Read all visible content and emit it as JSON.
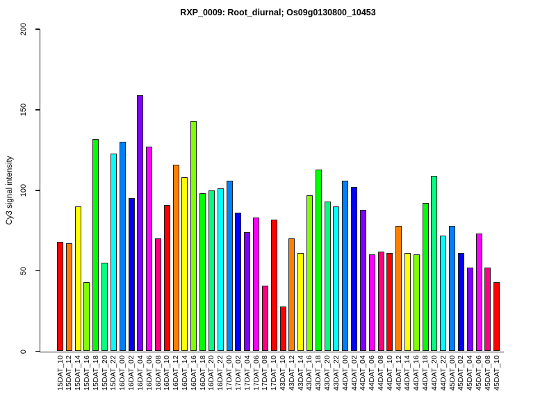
{
  "title": "RXP_0009: Root_diurnal; Os09g0130800_10453",
  "chart_data": {
    "type": "bar",
    "title": "RXP_0009: Root_diurnal; Os09g0130800_10453",
    "xlabel": "",
    "ylabel": "Cy3 signal intensity",
    "ylim": [
      0,
      200
    ],
    "yticks": [
      0,
      50,
      100,
      150,
      200
    ],
    "grid": false,
    "legend_position": "none",
    "background_color": "#ffffff",
    "axis_color": "#000000",
    "categories": [
      "15DAT_10",
      "15DAT_12",
      "15DAT_14",
      "15DAT_16",
      "15DAT_18",
      "15DAT_20",
      "15DAT_22",
      "16DAT_00",
      "16DAT_02",
      "16DAT_04",
      "16DAT_06",
      "16DAT_08",
      "16DAT_10",
      "16DAT_12",
      "16DAT_14",
      "16DAT_16",
      "16DAT_18",
      "16DAT_20",
      "16DAT_22",
      "17DAT_00",
      "17DAT_02",
      "17DAT_04",
      "17DAT_06",
      "17DAT_08",
      "17DAT_10",
      "43DAT_10",
      "43DAT_12",
      "43DAT_14",
      "43DAT_16",
      "43DAT_18",
      "43DAT_20",
      "43DAT_22",
      "44DAT_00",
      "44DAT_02",
      "44DAT_04",
      "44DAT_06",
      "44DAT_08",
      "44DAT_10",
      "44DAT_12",
      "44DAT_14",
      "44DAT_16",
      "44DAT_18",
      "44DAT_20",
      "44DAT_22",
      "45DAT_00",
      "45DAT_02",
      "45DAT_04",
      "45DAT_06",
      "45DAT_08",
      "45DAT_10"
    ],
    "values": [
      68,
      67,
      90,
      43,
      132,
      55,
      123,
      130,
      95,
      159,
      127,
      70,
      91,
      116,
      108,
      143,
      98,
      100,
      101,
      106,
      86,
      74,
      83,
      41,
      82,
      28,
      70,
      61,
      97,
      113,
      93,
      90,
      106,
      102,
      88,
      60,
      62,
      61,
      78,
      61,
      60,
      92,
      109,
      72,
      78,
      61,
      52,
      73,
      52,
      43
    ],
    "bar_colors": [
      "#FF0000",
      "#FF8000",
      "#FFFF00",
      "#80FF00",
      "#00FF00",
      "#00FF80",
      "#00FFFF",
      "#0080FF",
      "#0000FF",
      "#8000FF",
      "#FF00FF",
      "#FF0080",
      "#FF0000",
      "#FF8000",
      "#FFFF00",
      "#80FF00",
      "#00FF00",
      "#00FF80",
      "#00FFFF",
      "#0080FF",
      "#0000FF",
      "#8000FF",
      "#FF00FF",
      "#FF0080",
      "#FF0000",
      "#FF0000",
      "#FF8000",
      "#FFFF00",
      "#80FF00",
      "#00FF00",
      "#00FF80",
      "#00FFFF",
      "#0080FF",
      "#0000FF",
      "#8000FF",
      "#FF00FF",
      "#FF0080",
      "#FF0000",
      "#FF8000",
      "#FFFF00",
      "#80FF00",
      "#00FF00",
      "#00FF80",
      "#00FFFF",
      "#0080FF",
      "#0000FF",
      "#8000FF",
      "#FF00FF",
      "#FF0080",
      "#FF0000"
    ]
  }
}
